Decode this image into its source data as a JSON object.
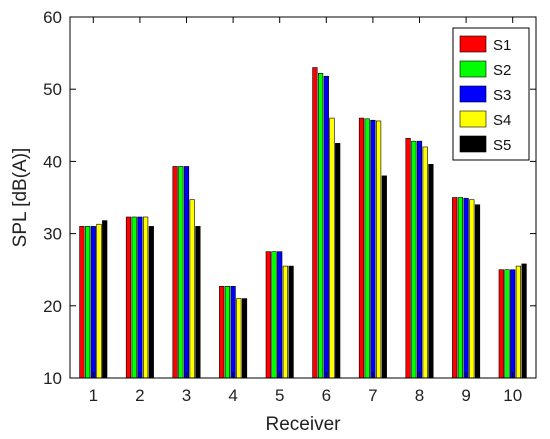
{
  "chart_data": {
    "type": "bar",
    "xlabel": "Receiver",
    "ylabel": "SPL [dB(A)]",
    "ylim": [
      10,
      60
    ],
    "yticks": [
      10,
      20,
      30,
      40,
      50,
      60
    ],
    "categories": [
      "1",
      "2",
      "3",
      "4",
      "5",
      "6",
      "7",
      "8",
      "9",
      "10"
    ],
    "grid": false,
    "legend_position": "top-right",
    "series": [
      {
        "name": "S1",
        "color": "#ff0000",
        "values": [
          31.0,
          32.3,
          39.3,
          22.7,
          27.5,
          53.0,
          46.0,
          43.2,
          35.0,
          25.0
        ]
      },
      {
        "name": "S2",
        "color": "#00ff00",
        "values": [
          31.0,
          32.3,
          39.3,
          22.7,
          27.5,
          52.2,
          45.9,
          42.8,
          35.0,
          25.0
        ]
      },
      {
        "name": "S3",
        "color": "#0000ff",
        "values": [
          31.0,
          32.3,
          39.3,
          22.7,
          27.5,
          51.8,
          45.7,
          42.8,
          34.9,
          25.0
        ]
      },
      {
        "name": "S4",
        "color": "#ffff00",
        "values": [
          31.3,
          32.3,
          34.7,
          21.0,
          25.5,
          46.0,
          45.6,
          42.0,
          34.7,
          25.5
        ]
      },
      {
        "name": "S5",
        "color": "#000000",
        "values": [
          31.8,
          31.0,
          31.0,
          21.0,
          25.5,
          42.5,
          38.0,
          39.6,
          34.0,
          25.8
        ]
      }
    ]
  }
}
